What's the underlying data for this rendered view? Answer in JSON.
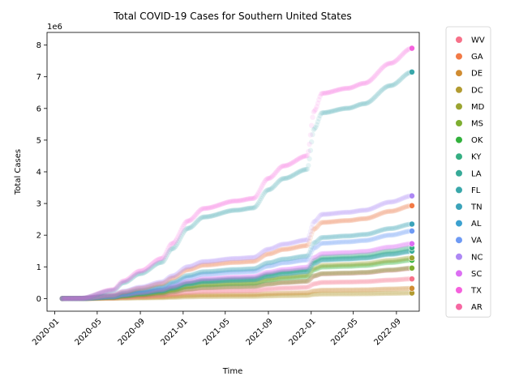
{
  "chart_data": {
    "type": "scatter",
    "title": "Total COVID-19 Cases for Southern United States",
    "xlabel": "Time",
    "ylabel": "Total Cases",
    "y_scale_label": "1e6",
    "xlim": [
      "2019-12-10",
      "2022-11-05"
    ],
    "ylim": [
      -400000,
      8400000
    ],
    "x_ticks": [
      "2020-01",
      "2020-05",
      "2020-09",
      "2021-01",
      "2021-05",
      "2021-09",
      "2022-01",
      "2022-05",
      "2022-09"
    ],
    "y_ticks": [
      0,
      1,
      2,
      3,
      4,
      5,
      6,
      7,
      8
    ],
    "grid": false,
    "legend_position": "right, outside",
    "series": [
      {
        "name": "WV",
        "color": "#f77189",
        "final": 620000
      },
      {
        "name": "GA",
        "color": "#f27a46",
        "final": 2930000
      },
      {
        "name": "DE",
        "color": "#d08c32",
        "final": 320000
      },
      {
        "name": "DC",
        "color": "#b29b31",
        "final": 175000
      },
      {
        "name": "MD",
        "color": "#9ba431",
        "final": 1280000
      },
      {
        "name": "MS",
        "color": "#7eae31",
        "final": 960000
      },
      {
        "name": "OK",
        "color": "#32b13c",
        "final": 1210000
      },
      {
        "name": "KY",
        "color": "#35ae82",
        "final": 1600000
      },
      {
        "name": "LA",
        "color": "#37aa98",
        "final": 1500000
      },
      {
        "name": "FL",
        "color": "#39a7aa",
        "final": 7150000
      },
      {
        "name": "TN",
        "color": "#3ba3b9",
        "final": 2350000
      },
      {
        "name": "AL",
        "color": "#3ca1d0",
        "final": 1480000
      },
      {
        "name": "VA",
        "color": "#6e9af4",
        "final": 2130000
      },
      {
        "name": "NC",
        "color": "#ad88f4",
        "final": 3240000
      },
      {
        "name": "SC",
        "color": "#dc6ff3",
        "final": 1730000
      },
      {
        "name": "TX",
        "color": "#f561dd",
        "final": 7900000
      },
      {
        "name": "AR",
        "color": "#f668a2",
        "final": 950000
      }
    ],
    "last_date": "2022-10-15",
    "time_shape_points": {
      "dates": [
        "2020-01-22",
        "2020-03-15",
        "2020-06-15",
        "2020-07-15",
        "2020-09-01",
        "2020-11-01",
        "2020-12-01",
        "2021-01-15",
        "2021-03-01",
        "2021-06-01",
        "2021-07-20",
        "2021-09-01",
        "2021-10-15",
        "2021-12-20",
        "2022-01-10",
        "2022-02-01",
        "2022-04-15",
        "2022-06-01",
        "2022-08-15",
        "2022-10-15"
      ],
      "fraction_of_final": [
        0,
        0.001,
        0.035,
        0.07,
        0.11,
        0.16,
        0.22,
        0.31,
        0.36,
        0.39,
        0.4,
        0.48,
        0.53,
        0.57,
        0.75,
        0.82,
        0.84,
        0.86,
        0.94,
        1.0
      ]
    }
  }
}
